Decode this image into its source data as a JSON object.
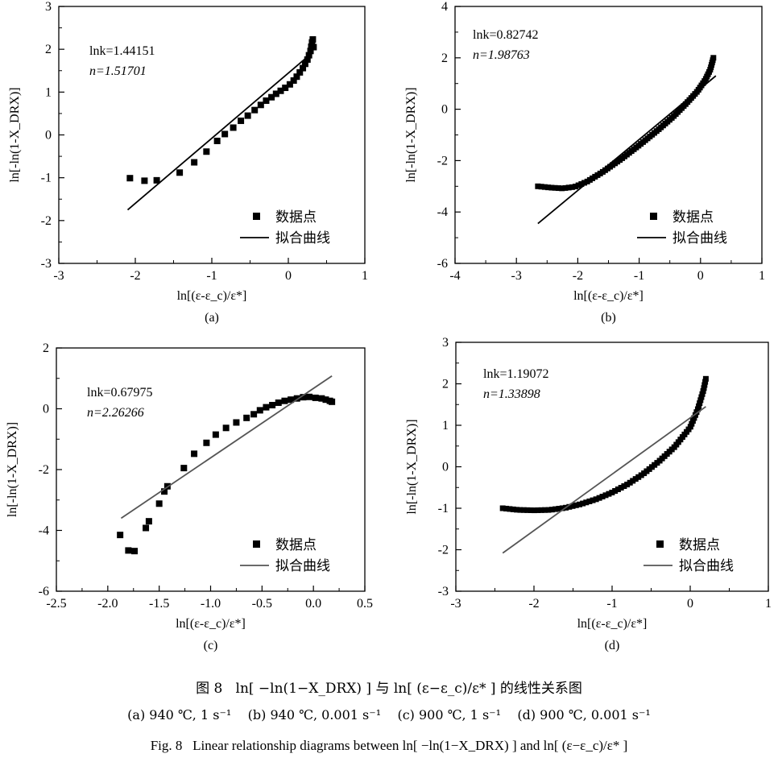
{
  "figure": {
    "caption_cn": "图 8   ln[ −ln(1−X_DRX) ] 与 ln[ (ε−ε_c)/ε* ] 的线性关系图",
    "caption_sub": "(a) 940 ℃, 1 s⁻¹    (b) 940 ℃, 0.001 s⁻¹    (c) 900 ℃, 1 s⁻¹    (d) 900 ℃, 0.001 s⁻¹",
    "caption_en": "Fig. 8   Linear relationship diagrams between ln[ −ln(1−X_DRX) ] and ln[ (ε−ε_c)/ε* ]"
  },
  "chart_data": [
    {
      "panel": "(a)",
      "type": "scatter",
      "xlabel": "ln[(ε-ε_c)/ε*]",
      "ylabel": "ln[-ln(1-X_DRX)]",
      "xlim": [
        -3,
        1
      ],
      "ylim": [
        -3,
        3
      ],
      "xticks": [
        -3,
        -2,
        -1,
        0,
        1
      ],
      "yticks": [
        -3,
        -2,
        -1,
        0,
        1,
        2,
        3
      ],
      "annotation": {
        "lnk": "lnk=1.44151",
        "n": "n=1.51701"
      },
      "legend": {
        "points": "数据点",
        "fit": "拟合曲线"
      },
      "fit_line": {
        "x": [
          -2.1,
          0.3
        ],
        "y": [
          -1.75,
          1.9
        ]
      },
      "points": {
        "x": [
          -2.07,
          -1.88,
          -1.72,
          -1.42,
          -1.23,
          -1.07,
          -0.93,
          -0.83,
          -0.72,
          -0.62,
          -0.53,
          -0.44,
          -0.36,
          -0.29,
          -0.22,
          -0.16,
          -0.1,
          -0.04,
          0.02,
          0.07,
          0.11,
          0.15,
          0.19,
          0.22,
          0.25,
          0.27,
          0.29,
          0.3,
          0.31,
          0.32,
          0.33
        ],
        "y": [
          -1.01,
          -1.07,
          -1.06,
          -0.88,
          -0.64,
          -0.39,
          -0.14,
          0.02,
          0.17,
          0.33,
          0.45,
          0.58,
          0.7,
          0.8,
          0.88,
          0.96,
          1.03,
          1.1,
          1.18,
          1.27,
          1.36,
          1.46,
          1.56,
          1.66,
          1.76,
          1.86,
          1.96,
          2.06,
          2.16,
          2.23,
          2.05
        ]
      }
    },
    {
      "panel": "(b)",
      "type": "scatter",
      "xlabel": "ln[(ε-ε_c)/ε*]",
      "ylabel": "ln[-ln(1-X_DRX)]",
      "xlim": [
        -4,
        1
      ],
      "ylim": [
        -6,
        4
      ],
      "xticks": [
        -4,
        -3,
        -2,
        -1,
        0,
        1
      ],
      "yticks": [
        -6,
        -4,
        -2,
        0,
        2,
        4
      ],
      "annotation": {
        "lnk": "lnk=0.82742",
        "n": "n=1.98763"
      },
      "legend": {
        "points": "数据点",
        "fit": "拟合曲线"
      },
      "fit_line": {
        "x": [
          -2.65,
          0.25
        ],
        "y": [
          -4.45,
          1.3
        ]
      },
      "points": {
        "curve": [
          [
            -2.65,
            -3.0
          ],
          [
            -2.45,
            -3.05
          ],
          [
            -2.25,
            -3.08
          ],
          [
            -2.05,
            -3.02
          ],
          [
            -1.85,
            -2.82
          ],
          [
            -1.6,
            -2.45
          ],
          [
            -1.3,
            -1.95
          ],
          [
            -1.0,
            -1.4
          ],
          [
            -0.7,
            -0.82
          ],
          [
            -0.45,
            -0.3
          ],
          [
            -0.25,
            0.18
          ],
          [
            -0.05,
            0.7
          ],
          [
            0.08,
            1.15
          ],
          [
            0.16,
            1.55
          ],
          [
            0.21,
            2.0
          ]
        ],
        "n": 80
      }
    },
    {
      "panel": "(c)",
      "type": "scatter",
      "xlabel": "ln[(ε-ε_c)/ε*]",
      "ylabel": "ln[-ln(1-X_DRX)]",
      "xlim": [
        -2.5,
        0.5
      ],
      "ylim": [
        -6,
        2
      ],
      "xticks": [
        -2.5,
        -2.0,
        -1.5,
        -1.0,
        -0.5,
        0.0,
        0.5
      ],
      "yticks": [
        -6,
        -4,
        -2,
        0,
        2
      ],
      "annotation": {
        "lnk": "lnk=0.67975",
        "n": "n=2.26266"
      },
      "legend": {
        "points": "数据点",
        "fit": "拟合曲线"
      },
      "fit_line": {
        "x": [
          -1.87,
          0.18
        ],
        "y": [
          -3.6,
          1.08
        ]
      },
      "points": {
        "x": [
          -1.88,
          -1.8,
          -1.74,
          -1.63,
          -1.6,
          -1.5,
          -1.45,
          -1.42,
          -1.26,
          -1.16,
          -1.04,
          -0.95,
          -0.85,
          -0.75,
          -0.65,
          -0.58,
          -0.52,
          -0.46,
          -0.4,
          -0.34,
          -0.28,
          -0.22,
          -0.16,
          -0.1,
          -0.04,
          0.02,
          0.08,
          0.12,
          0.16,
          0.18
        ],
        "y": [
          -4.15,
          -4.66,
          -4.68,
          -3.92,
          -3.7,
          -3.12,
          -2.72,
          -2.55,
          -1.95,
          -1.48,
          -1.12,
          -0.85,
          -0.63,
          -0.45,
          -0.3,
          -0.18,
          -0.05,
          0.05,
          0.12,
          0.2,
          0.26,
          0.3,
          0.34,
          0.38,
          0.39,
          0.36,
          0.34,
          0.3,
          0.26,
          0.23
        ]
      }
    },
    {
      "panel": "(d)",
      "type": "scatter",
      "xlabel": "ln[(ε-ε_c)/ε*]",
      "ylabel": "ln[-ln(1-X_DRX)]",
      "xlim": [
        -3,
        1
      ],
      "ylim": [
        -3,
        3
      ],
      "xticks": [
        -3,
        -2,
        -1,
        0,
        1
      ],
      "yticks": [
        -3,
        -2,
        -1,
        0,
        1,
        2,
        3
      ],
      "annotation": {
        "lnk": "lnk=1.19072",
        "n": "n=1.33898"
      },
      "legend": {
        "points": "数据点",
        "fit": "拟合曲线"
      },
      "fit_line": {
        "x": [
          -2.4,
          0.2
        ],
        "y": [
          -2.08,
          1.45
        ]
      },
      "points": {
        "curve": [
          [
            -2.4,
            -1.0
          ],
          [
            -2.2,
            -1.04
          ],
          [
            -2.0,
            -1.05
          ],
          [
            -1.8,
            -1.04
          ],
          [
            -1.6,
            -0.99
          ],
          [
            -1.4,
            -0.9
          ],
          [
            -1.2,
            -0.78
          ],
          [
            -1.0,
            -0.62
          ],
          [
            -0.8,
            -0.42
          ],
          [
            -0.6,
            -0.17
          ],
          [
            -0.4,
            0.13
          ],
          [
            -0.2,
            0.48
          ],
          [
            0.0,
            0.95
          ],
          [
            0.1,
            1.4
          ],
          [
            0.17,
            1.85
          ],
          [
            0.2,
            2.12
          ]
        ],
        "n": 80
      }
    }
  ]
}
